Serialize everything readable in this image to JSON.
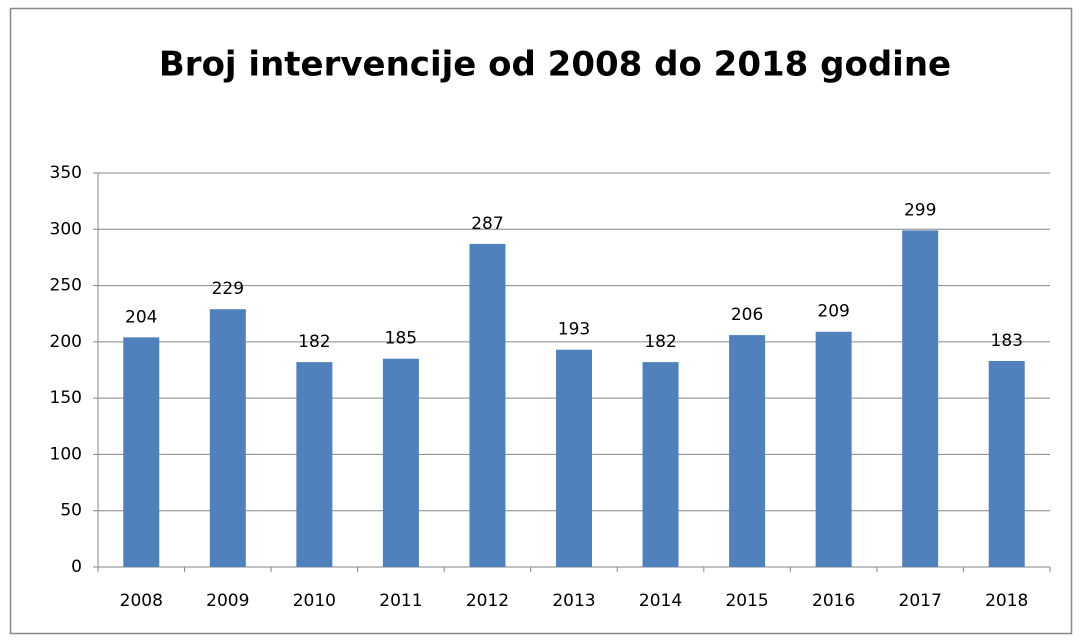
{
  "chart_data": {
    "type": "bar",
    "title": "Broj intervencije od 2008 do 2018 godine",
    "categories": [
      "2008",
      "2009",
      "2010",
      "2011",
      "2012",
      "2013",
      "2014",
      "2015",
      "2016",
      "2017",
      "2018"
    ],
    "values": [
      204,
      229,
      182,
      185,
      287,
      193,
      182,
      206,
      209,
      299,
      183
    ],
    "color": "#4f81bd",
    "ylim": [
      0,
      350
    ],
    "yticks": [
      0,
      50,
      100,
      150,
      200,
      250,
      300,
      350
    ],
    "grid": true
  }
}
